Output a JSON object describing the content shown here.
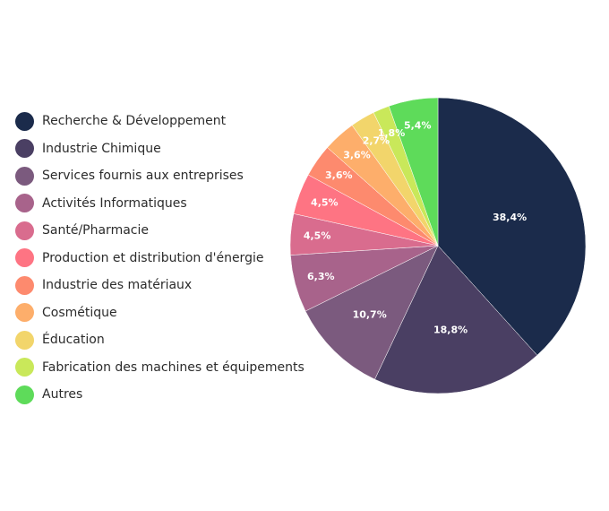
{
  "chart_data": {
    "type": "pie",
    "title": "",
    "legend_position": "left",
    "slices": [
      {
        "name": "Recherche & Développement",
        "value": 38.4,
        "label": "38,4%",
        "color": "#1b2b4b"
      },
      {
        "name": "Industrie Chimique",
        "value": 18.8,
        "label": "18,8%",
        "color": "#4a3f63"
      },
      {
        "name": "Services fournis aux entreprises",
        "value": 10.7,
        "label": "10,7%",
        "color": "#7b5a7e"
      },
      {
        "name": "Activités Informatiques",
        "value": 6.3,
        "label": "6,3%",
        "color": "#a8638b"
      },
      {
        "name": "Santé/Pharmacie",
        "value": 4.5,
        "label": "4,5%",
        "color": "#d96c8e"
      },
      {
        "name": "Production et distribution d'énergie",
        "value": 4.5,
        "label": "4,5%",
        "color": "#fe7483"
      },
      {
        "name": "Industrie des matériaux",
        "value": 3.6,
        "label": "3,6%",
        "color": "#fd8a6e"
      },
      {
        "name": "Cosmétique",
        "value": 3.6,
        "label": "3,6%",
        "color": "#fdae6b"
      },
      {
        "name": "Éducation",
        "value": 2.7,
        "label": "2,7%",
        "color": "#f2d56b"
      },
      {
        "name": "Fabrication des machines et équipements",
        "value": 1.8,
        "label": "1,8%",
        "color": "#c9e85a"
      },
      {
        "name": "Autres",
        "value": 5.4,
        "label": "5,4%",
        "color": "#5edb5a"
      }
    ]
  }
}
